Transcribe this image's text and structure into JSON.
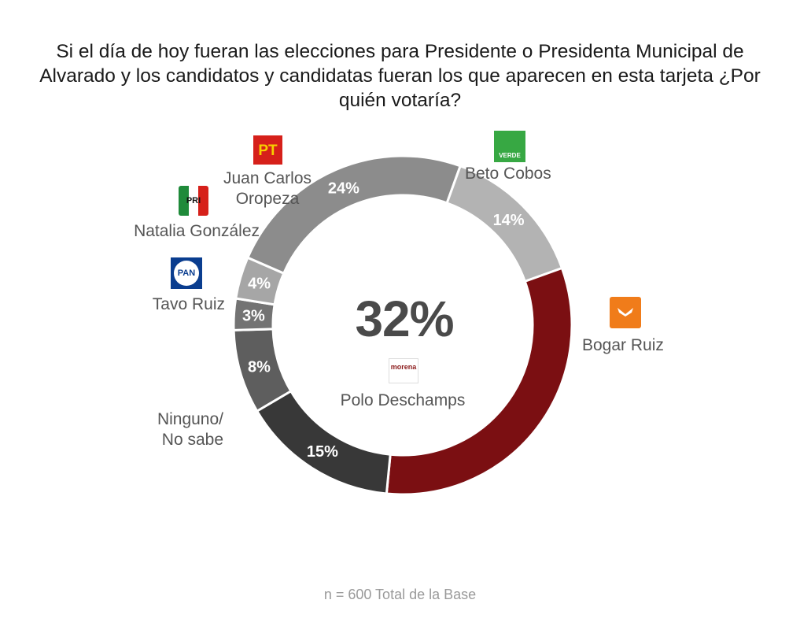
{
  "title": "Si el día de hoy fueran las elecciones para Presidente o Presidenta Municipal de Alvarado y los candidatos y candidatas fueran los que aparecen en esta tarjeta ¿Por quién votaría?",
  "footer": "n = 600 Total de la Base",
  "center": {
    "value": "32%",
    "name": "Polo Deschamps",
    "logo_text": "morena"
  },
  "labels": {
    "beto": "Beto Cobos",
    "bogar": "Bogar Ruiz",
    "juan_line1": "Juan Carlos",
    "juan_line2": "Oropeza",
    "natalia": "Natalia González",
    "tavo": "Tavo Ruiz",
    "ninguno_line1": "Ninguno/",
    "ninguno_line2": "No sabe"
  },
  "logos": {
    "pt": "PT",
    "pri": "PRI",
    "pan": "PAN",
    "verde": "VERDE",
    "mc": "movimiento-ciudadano-icon"
  },
  "chart_data": {
    "type": "pie",
    "title": "Si el día de hoy fueran las elecciones para Presidente o Presidenta Municipal de Alvarado y los candidatos y candidatas fueran los que aparecen en esta tarjeta ¿Por quién votaría?",
    "series": [
      {
        "name": "Beto Cobos",
        "value": 24,
        "label": "24%",
        "color": "#8c8c8c"
      },
      {
        "name": "Bogar Ruiz",
        "value": 14,
        "label": "14%",
        "color": "#b3b3b3"
      },
      {
        "name": "Polo Deschamps",
        "value": 32,
        "label": "32%",
        "color": "#7b0f12"
      },
      {
        "name": "Ninguno/ No sabe",
        "value": 15,
        "label": "15%",
        "color": "#383838"
      },
      {
        "name": "Tavo Ruiz",
        "value": 8,
        "label": "8%",
        "color": "#5e5e5e"
      },
      {
        "name": "Natalia González",
        "value": 3,
        "label": "3%",
        "color": "#737373"
      },
      {
        "name": "Juan Carlos Oropeza",
        "value": 4,
        "label": "4%",
        "color": "#a6a6a6"
      }
    ],
    "donut": true
  }
}
